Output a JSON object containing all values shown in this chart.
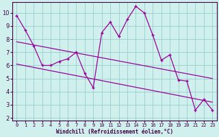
{
  "xlabel": "Windchill (Refroidissement éolien,°C)",
  "bg_color": "#cff0ec",
  "line_color": "#990099",
  "grid_color": "#99cccc",
  "xlim": [
    -0.5,
    23.5
  ],
  "ylim": [
    1.8,
    10.8
  ],
  "xticks": [
    0,
    1,
    2,
    3,
    4,
    5,
    6,
    7,
    8,
    9,
    10,
    11,
    12,
    13,
    14,
    15,
    16,
    17,
    18,
    19,
    20,
    21,
    22,
    23
  ],
  "yticks": [
    2,
    3,
    4,
    5,
    6,
    7,
    8,
    9,
    10
  ],
  "main_x": [
    0,
    1,
    2,
    3,
    4,
    5,
    6,
    7,
    8,
    9,
    10,
    11,
    12,
    13,
    14,
    15,
    16,
    17,
    18,
    19,
    20,
    21,
    22,
    23
  ],
  "main_y": [
    9.8,
    8.7,
    7.5,
    6.0,
    6.0,
    6.3,
    6.5,
    7.0,
    5.4,
    4.3,
    8.5,
    9.3,
    8.2,
    9.5,
    10.5,
    10.0,
    8.3,
    6.4,
    6.8,
    4.9,
    4.8,
    2.6,
    3.4,
    2.6
  ],
  "trend1_x": [
    0,
    23
  ],
  "trend1_y": [
    7.8,
    5.0
  ],
  "trend2_x": [
    0,
    23
  ],
  "trend2_y": [
    6.1,
    3.2
  ],
  "xlabel_fontsize": 5.5,
  "tick_fontsize_x": 5,
  "tick_fontsize_y": 6
}
